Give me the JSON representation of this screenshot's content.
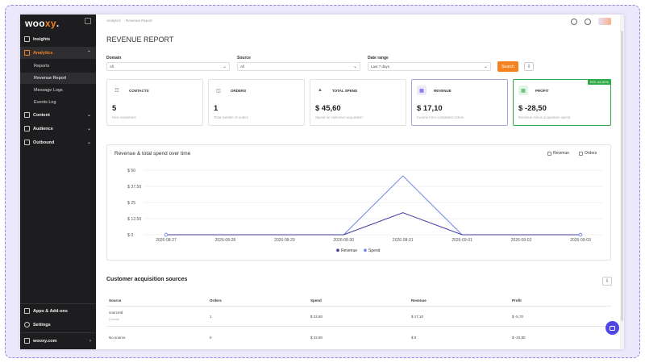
{
  "app": {
    "logo_text": "woo",
    "logo_accent": "xy",
    "logo_suffix": ".",
    "brand_color": "#f58220",
    "accent_color": "#4f46e5"
  },
  "sidebar": {
    "items": [
      {
        "label": "Insights",
        "icon": "chart-bar-icon"
      },
      {
        "label": "Analytics",
        "icon": "analytics-icon"
      },
      {
        "label": "Content",
        "icon": "content-icon"
      },
      {
        "label": "Audience",
        "icon": "audience-icon"
      },
      {
        "label": "Outbound",
        "icon": "outbound-icon"
      }
    ],
    "analytics_sub": [
      "Reports",
      "Revenue Report",
      "Message Logs",
      "Events Log"
    ],
    "bottom": [
      {
        "label": "Apps & Add-ons",
        "icon": "apps-icon"
      },
      {
        "label": "Settings",
        "icon": "gear-icon"
      },
      {
        "label": "wooxy.com",
        "icon": "workspace-icon"
      }
    ]
  },
  "breadcrumb": [
    "Analytics",
    "Revenue Report"
  ],
  "page_title": "REVENUE REPORT",
  "filters": {
    "domain": {
      "label": "Domain",
      "value": "All"
    },
    "source": {
      "label": "Source",
      "value": "All"
    },
    "date_range": {
      "label": "Date range",
      "value": "Last 7 days"
    },
    "search_label": "Search"
  },
  "cards": [
    {
      "label": "CONTACTS",
      "value": "5",
      "desc": "New customers"
    },
    {
      "label": "ORDERS",
      "value": "1",
      "desc": "Total number of orders"
    },
    {
      "label": "TOTAL SPEND",
      "value": "$ 45,60",
      "desc": "Spend on customer acquisition"
    },
    {
      "label": "REVENUE",
      "value": "$ 17,10",
      "desc": "Income from completed orders"
    },
    {
      "label": "PROFIT",
      "value": "$ -28,50",
      "desc": "Revenue minus acquisition spend",
      "badge": "ROI -62,50%"
    }
  ],
  "chart": {
    "title": "Revenue & total spend over time",
    "toggles": [
      "Revenue",
      "Orders"
    ]
  },
  "chart_data": {
    "type": "line",
    "title": "Revenue & total spend over time",
    "x": [
      "2026-08-27",
      "2026-08-28",
      "2026-08-29",
      "2026-08-30",
      "2026-08-31",
      "2026-09-01",
      "2026-09-02",
      "2026-09-03"
    ],
    "ytick_labels": [
      "$ 50",
      "$ 37,50",
      "$ 25",
      "$ 12,50",
      "$ 0"
    ],
    "ylim": [
      0,
      50
    ],
    "series": [
      {
        "name": "Revenue",
        "color": "#3f3a9f",
        "values": [
          0,
          0,
          0,
          0,
          17.1,
          0,
          0,
          0
        ]
      },
      {
        "name": "Spend",
        "color": "#6b87e8",
        "values": [
          0,
          0,
          0,
          0,
          45.6,
          0,
          0,
          0
        ]
      }
    ],
    "grid": true,
    "legend": "bottom"
  },
  "sources": {
    "title": "Customer acquisition sources",
    "headers": [
      "Source",
      "Orders",
      "Spend",
      "Revenue",
      "Profit"
    ],
    "rows": [
      {
        "source": "sourceId",
        "sub": "Domain",
        "orders": "1",
        "spend": "$ 22,80",
        "revenue": "$ 17,10",
        "profit": "$ -5,70"
      },
      {
        "source": "No source",
        "sub": "",
        "orders": "0",
        "spend": "$ 22,80",
        "revenue": "$ 0",
        "profit": "$ -22,80"
      }
    ]
  }
}
